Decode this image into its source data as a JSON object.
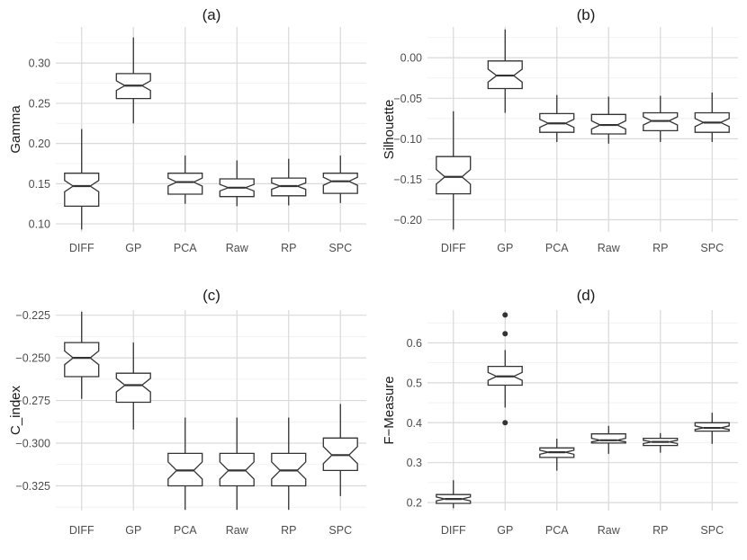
{
  "chart_data": [
    {
      "type": "boxplot",
      "panel": "a",
      "title": "(a)",
      "ylabel": "Gamma",
      "ylim": [
        0.09,
        0.345
      ],
      "yticks": [
        0.1,
        0.15,
        0.2,
        0.25,
        0.3
      ],
      "ytick_labels": [
        "0.10",
        "0.15",
        "0.20",
        "0.25",
        "0.30"
      ],
      "categories": [
        "DIFF",
        "GP",
        "PCA",
        "Raw",
        "RP",
        "SPC"
      ],
      "boxes": [
        {
          "min": 0.093,
          "q1": 0.122,
          "median": 0.147,
          "q3": 0.163,
          "max": 0.218,
          "notch": [
            0.14,
            0.154
          ],
          "outliers": []
        },
        {
          "min": 0.225,
          "q1": 0.256,
          "median": 0.272,
          "q3": 0.287,
          "max": 0.332,
          "notch": [
            0.266,
            0.278
          ],
          "outliers": []
        },
        {
          "min": 0.125,
          "q1": 0.137,
          "median": 0.152,
          "q3": 0.163,
          "max": 0.185,
          "notch": [
            0.147,
            0.157
          ],
          "outliers": []
        },
        {
          "min": 0.122,
          "q1": 0.134,
          "median": 0.145,
          "q3": 0.156,
          "max": 0.179,
          "notch": [
            0.141,
            0.149
          ],
          "outliers": []
        },
        {
          "min": 0.123,
          "q1": 0.135,
          "median": 0.147,
          "q3": 0.157,
          "max": 0.181,
          "notch": [
            0.143,
            0.151
          ],
          "outliers": []
        },
        {
          "min": 0.126,
          "q1": 0.138,
          "median": 0.153,
          "q3": 0.163,
          "max": 0.185,
          "notch": [
            0.148,
            0.158
          ],
          "outliers": []
        }
      ]
    },
    {
      "type": "boxplot",
      "panel": "b",
      "title": "(b)",
      "ylabel": "Silhouette",
      "ylim": [
        -0.215,
        0.038
      ],
      "yticks": [
        0.0,
        -0.05,
        -0.1,
        -0.15,
        -0.2
      ],
      "ytick_labels": [
        "0.00",
        "−0.05",
        "−0.10",
        "−0.15",
        "−0.20"
      ],
      "categories": [
        "DIFF",
        "GP",
        "PCA",
        "Raw",
        "RP",
        "SPC"
      ],
      "boxes": [
        {
          "min": -0.212,
          "q1": -0.168,
          "median": -0.147,
          "q3": -0.122,
          "max": -0.066,
          "notch": [
            -0.156,
            -0.138
          ],
          "outliers": []
        },
        {
          "min": -0.068,
          "q1": -0.038,
          "median": -0.022,
          "q3": -0.004,
          "max": 0.035,
          "notch": [
            -0.03,
            -0.014
          ],
          "outliers": []
        },
        {
          "min": -0.104,
          "q1": -0.092,
          "median": -0.081,
          "q3": -0.069,
          "max": -0.046,
          "notch": [
            -0.086,
            -0.076
          ],
          "outliers": []
        },
        {
          "min": -0.106,
          "q1": -0.094,
          "median": -0.083,
          "q3": -0.07,
          "max": -0.048,
          "notch": [
            -0.088,
            -0.078
          ],
          "outliers": []
        },
        {
          "min": -0.104,
          "q1": -0.09,
          "median": -0.078,
          "q3": -0.068,
          "max": -0.047,
          "notch": [
            -0.083,
            -0.073
          ],
          "outliers": []
        },
        {
          "min": -0.104,
          "q1": -0.092,
          "median": -0.08,
          "q3": -0.068,
          "max": -0.043,
          "notch": [
            -0.085,
            -0.075
          ],
          "outliers": []
        }
      ]
    },
    {
      "type": "boxplot",
      "panel": "c",
      "title": "(c)",
      "ylabel": "C_index",
      "ylim": [
        -0.3395,
        -0.222
      ],
      "yticks": [
        -0.225,
        -0.25,
        -0.275,
        -0.3,
        -0.325
      ],
      "ytick_labels": [
        "−0.225",
        "−0.250",
        "−0.275",
        "−0.300",
        "−0.325"
      ],
      "categories": [
        "DIFF",
        "GP",
        "PCA",
        "Raw",
        "RP",
        "SPC"
      ],
      "boxes": [
        {
          "min": -0.274,
          "q1": -0.261,
          "median": -0.25,
          "q3": -0.241,
          "max": -0.223,
          "notch": [
            -0.254,
            -0.246
          ],
          "outliers": []
        },
        {
          "min": -0.292,
          "q1": -0.276,
          "median": -0.266,
          "q3": -0.259,
          "max": -0.241,
          "notch": [
            -0.27,
            -0.262
          ],
          "outliers": []
        },
        {
          "min": -0.339,
          "q1": -0.325,
          "median": -0.316,
          "q3": -0.306,
          "max": -0.285,
          "notch": [
            -0.321,
            -0.311
          ],
          "outliers": []
        },
        {
          "min": -0.339,
          "q1": -0.325,
          "median": -0.316,
          "q3": -0.306,
          "max": -0.285,
          "notch": [
            -0.321,
            -0.311
          ],
          "outliers": []
        },
        {
          "min": -0.339,
          "q1": -0.325,
          "median": -0.316,
          "q3": -0.306,
          "max": -0.285,
          "notch": [
            -0.321,
            -0.311
          ],
          "outliers": []
        },
        {
          "min": -0.331,
          "q1": -0.316,
          "median": -0.307,
          "q3": -0.297,
          "max": -0.277,
          "notch": [
            -0.312,
            -0.302
          ],
          "outliers": []
        }
      ]
    },
    {
      "type": "boxplot",
      "panel": "d",
      "title": "(d)",
      "ylabel": "F−Measure",
      "ylim": [
        0.18,
        0.682
      ],
      "yticks": [
        0.2,
        0.3,
        0.4,
        0.5,
        0.6
      ],
      "ytick_labels": [
        "0.2",
        "0.3",
        "0.4",
        "0.5",
        "0.6"
      ],
      "categories": [
        "DIFF",
        "GP",
        "PCA",
        "Raw",
        "RP",
        "SPC"
      ],
      "boxes": [
        {
          "min": 0.186,
          "q1": 0.198,
          "median": 0.209,
          "q3": 0.22,
          "max": 0.256,
          "notch": [
            0.204,
            0.214
          ],
          "outliers": []
        },
        {
          "min": 0.438,
          "q1": 0.494,
          "median": 0.516,
          "q3": 0.541,
          "max": 0.582,
          "notch": [
            0.506,
            0.526
          ],
          "outliers": [
            0.4,
            0.623,
            0.67
          ]
        },
        {
          "min": 0.28,
          "q1": 0.313,
          "median": 0.326,
          "q3": 0.337,
          "max": 0.36,
          "notch": [
            0.321,
            0.331
          ],
          "outliers": []
        },
        {
          "min": 0.322,
          "q1": 0.349,
          "median": 0.356,
          "q3": 0.372,
          "max": 0.392,
          "notch": [
            0.352,
            0.361
          ],
          "outliers": []
        },
        {
          "min": 0.325,
          "q1": 0.343,
          "median": 0.352,
          "q3": 0.361,
          "max": 0.374,
          "notch": [
            0.348,
            0.356
          ],
          "outliers": []
        },
        {
          "min": 0.347,
          "q1": 0.379,
          "median": 0.387,
          "q3": 0.4,
          "max": 0.425,
          "notch": [
            0.383,
            0.392
          ],
          "outliers": []
        }
      ]
    }
  ]
}
